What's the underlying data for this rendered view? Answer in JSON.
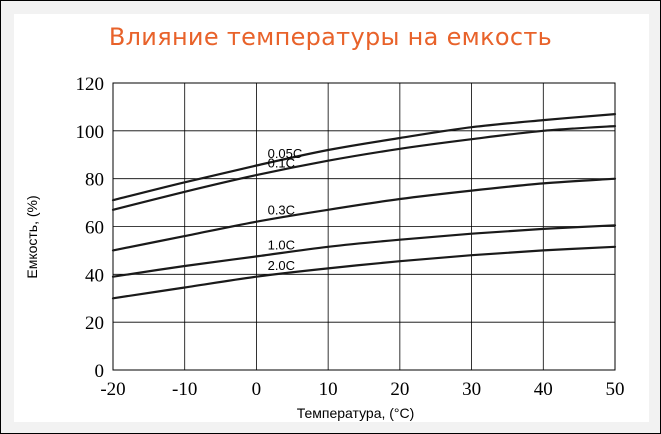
{
  "chart_data": {
    "type": "line",
    "title": "Влияние температуры на емкость",
    "xlabel": "Температура, (°C)",
    "ylabel": "Емкость, (%)",
    "xlim": [
      -20,
      50
    ],
    "ylim": [
      0,
      120
    ],
    "x_ticks": [
      "-20",
      "-10",
      "0",
      "10",
      "20",
      "30",
      "40",
      "50"
    ],
    "y_ticks": [
      "0",
      "20",
      "40",
      "60",
      "80",
      "100",
      "120"
    ],
    "grid": true,
    "x": [
      -20,
      -10,
      0,
      10,
      20,
      30,
      40,
      50
    ],
    "series": [
      {
        "name": "0.05C",
        "values": [
          71,
          78.5,
          85.5,
          92,
          97,
          101.5,
          104.5,
          107
        ]
      },
      {
        "name": "0.1C",
        "values": [
          67,
          74.5,
          81.5,
          87.5,
          92.5,
          96.5,
          100,
          102
        ]
      },
      {
        "name": "0.3C",
        "values": [
          50,
          56,
          62,
          67,
          71.5,
          75,
          78,
          80
        ]
      },
      {
        "name": "1.0C",
        "values": [
          39,
          43.5,
          47.5,
          51.5,
          54.5,
          57,
          59,
          60.5
        ]
      },
      {
        "name": "2.0C",
        "values": [
          30,
          34.5,
          39,
          42.5,
          45.5,
          48,
          50,
          51.5
        ]
      }
    ],
    "line_color": "#1a1a1a",
    "grid_color": "#000000",
    "title_color": "#e8622a"
  }
}
